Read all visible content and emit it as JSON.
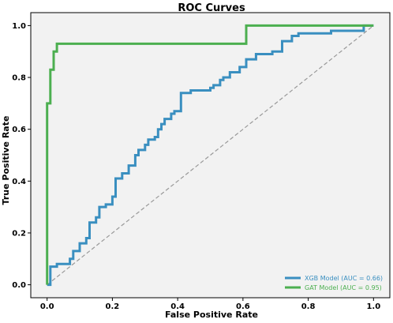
{
  "chart_data": {
    "type": "line",
    "title": "ROC Curves",
    "xlabel": "False Positive Rate",
    "ylabel": "True Positive Rate",
    "xlim": [
      -0.05,
      1.05
    ],
    "ylim": [
      -0.05,
      1.05
    ],
    "x_ticks": [
      "0.0",
      "0.2",
      "0.4",
      "0.6",
      "0.8",
      "1.0"
    ],
    "y_ticks": [
      "0.0",
      "0.2",
      "0.4",
      "0.6",
      "0.8",
      "1.0"
    ],
    "grid": false,
    "legend_position": "bottom-right",
    "background_color": "#f2f2f2",
    "series": [
      {
        "name": "XGB Model (AUC = 0.66)",
        "color": "#3a8fc0",
        "x": [
          0.0,
          0.01,
          0.01,
          0.03,
          0.03,
          0.07,
          0.07,
          0.08,
          0.08,
          0.1,
          0.1,
          0.12,
          0.12,
          0.13,
          0.13,
          0.15,
          0.15,
          0.16,
          0.16,
          0.18,
          0.18,
          0.2,
          0.2,
          0.21,
          0.21,
          0.23,
          0.23,
          0.25,
          0.25,
          0.27,
          0.27,
          0.28,
          0.28,
          0.3,
          0.3,
          0.31,
          0.31,
          0.33,
          0.33,
          0.34,
          0.34,
          0.35,
          0.35,
          0.36,
          0.36,
          0.38,
          0.38,
          0.39,
          0.39,
          0.41,
          0.41,
          0.43,
          0.43,
          0.44,
          0.44,
          0.5,
          0.5,
          0.51,
          0.51,
          0.53,
          0.53,
          0.54,
          0.54,
          0.56,
          0.56,
          0.59,
          0.59,
          0.61,
          0.61,
          0.62,
          0.62,
          0.64,
          0.64,
          0.69,
          0.69,
          0.72,
          0.72,
          0.75,
          0.75,
          0.77,
          0.77,
          0.8,
          0.8,
          0.87,
          0.87,
          0.97,
          0.97,
          1.0
        ],
        "y": [
          0.0,
          0.0,
          0.07,
          0.07,
          0.08,
          0.08,
          0.1,
          0.1,
          0.13,
          0.13,
          0.16,
          0.16,
          0.18,
          0.18,
          0.24,
          0.24,
          0.26,
          0.26,
          0.3,
          0.3,
          0.31,
          0.31,
          0.34,
          0.34,
          0.41,
          0.41,
          0.43,
          0.43,
          0.46,
          0.46,
          0.5,
          0.5,
          0.52,
          0.52,
          0.54,
          0.54,
          0.56,
          0.56,
          0.57,
          0.57,
          0.6,
          0.6,
          0.62,
          0.62,
          0.64,
          0.64,
          0.66,
          0.66,
          0.67,
          0.67,
          0.74,
          0.74,
          0.74,
          0.74,
          0.75,
          0.75,
          0.76,
          0.76,
          0.77,
          0.77,
          0.79,
          0.79,
          0.8,
          0.8,
          0.82,
          0.82,
          0.84,
          0.84,
          0.87,
          0.87,
          0.87,
          0.87,
          0.89,
          0.89,
          0.9,
          0.9,
          0.94,
          0.94,
          0.96,
          0.96,
          0.97,
          0.97,
          0.97,
          0.97,
          0.98,
          0.98,
          1.0,
          1.0
        ]
      },
      {
        "name": "GAT Model (AUC = 0.95)",
        "color": "#4caf50",
        "x": [
          0.0,
          0.0,
          0.01,
          0.01,
          0.02,
          0.02,
          0.03,
          0.03,
          0.04,
          0.04,
          0.61,
          0.61,
          1.0
        ],
        "y": [
          0.0,
          0.7,
          0.7,
          0.83,
          0.83,
          0.9,
          0.9,
          0.93,
          0.93,
          0.93,
          0.93,
          1.0,
          1.0
        ]
      },
      {
        "name": "",
        "color": "#999999",
        "dashed": true,
        "x": [
          0.0,
          1.0
        ],
        "y": [
          0.0,
          1.0
        ]
      }
    ]
  }
}
